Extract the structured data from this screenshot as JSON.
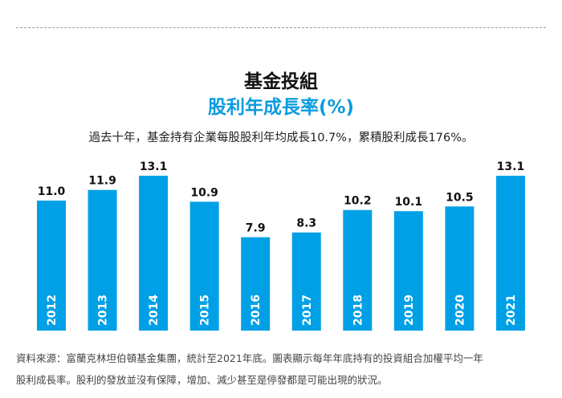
{
  "header": {
    "title": "基金投組",
    "subtitle": "股利年成長率(%)"
  },
  "description": "過去十年，基金持有企業每股股利年均成長10.7%，累積股利成長176%。",
  "footnote": [
    "資料來源：富蘭克林坦伯頓基金集團，統計至2021年底。圖表顯示每年年底持有的投資組合加權平均一年",
    "股利成長率。股利的發放並沒有保障，增加、減少甚至是停發都是可能出現的狀況。"
  ],
  "colors": {
    "bar": "#00a0e6",
    "subtitle": "#0b9be0"
  },
  "chart_data": {
    "type": "bar",
    "title": "股利年成長率(%)",
    "categories": [
      "2012",
      "2013",
      "2014",
      "2015",
      "2016",
      "2017",
      "2018",
      "2019",
      "2020",
      "2021"
    ],
    "values": [
      11.0,
      11.9,
      13.1,
      10.9,
      7.9,
      8.3,
      10.2,
      10.1,
      10.5,
      13.1
    ],
    "ylim": [
      0,
      13.1
    ],
    "grid": false,
    "data_labels": [
      "11.0",
      "11.9",
      "13.1",
      "10.9",
      "7.9",
      "8.3",
      "10.2",
      "10.1",
      "10.5",
      "13.1"
    ]
  }
}
